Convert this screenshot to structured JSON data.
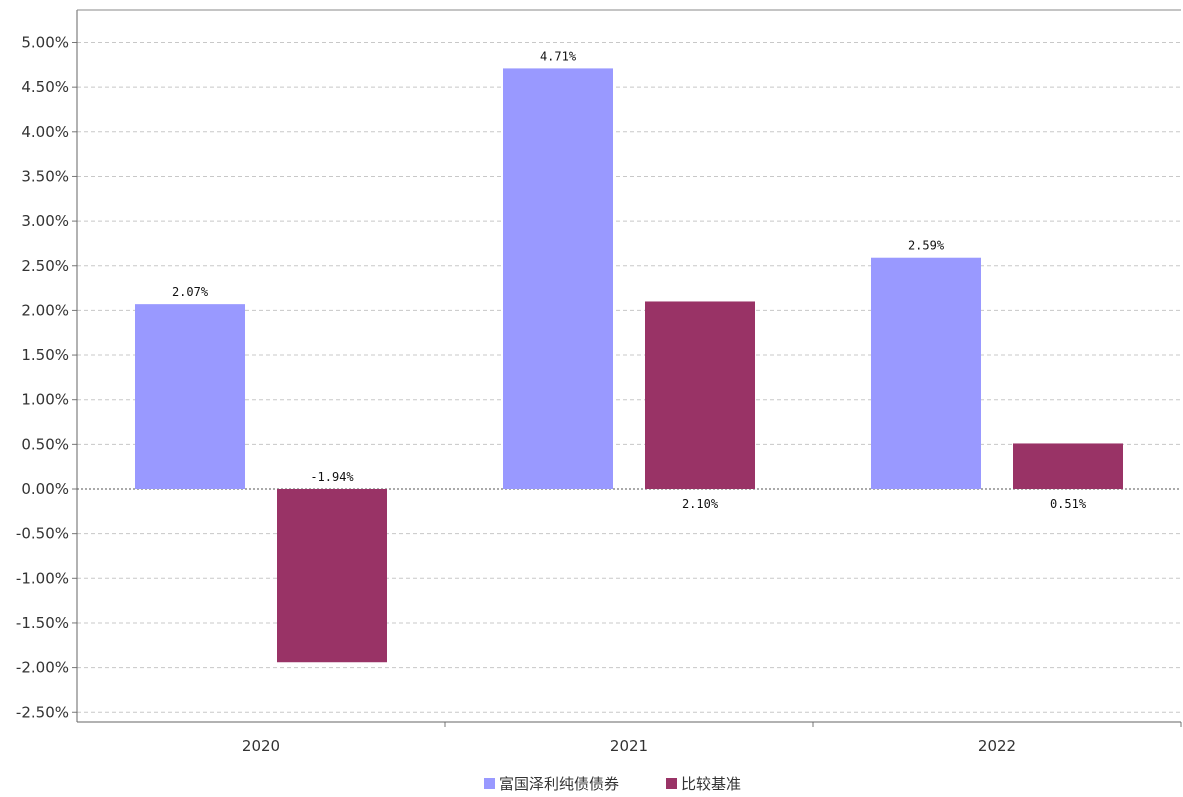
{
  "chart_data": {
    "type": "bar",
    "categories": [
      "2020",
      "2021",
      "2022"
    ],
    "series": [
      {
        "name": "富国泽利纯债债券",
        "color": "#9999ff",
        "values": [
          2.07,
          4.71,
          2.59
        ],
        "labels": [
          "2.07%",
          "4.71%",
          "2.59%"
        ]
      },
      {
        "name": "比较基准",
        "color": "#993366",
        "values": [
          -1.94,
          2.1,
          0.51
        ],
        "labels": [
          "-1.94%",
          "2.10%",
          "0.51%"
        ]
      }
    ],
    "yticks": [
      "5.00%",
      "4.50%",
      "4.00%",
      "3.50%",
      "3.00%",
      "2.50%",
      "2.00%",
      "1.50%",
      "1.00%",
      "0.50%",
      "0.00%",
      "-0.50%",
      "-1.00%",
      "-1.50%",
      "-2.00%",
      "-2.50%"
    ],
    "ylim": [
      -2.5,
      5.0
    ],
    "grid": true,
    "legend_position": "bottom-center",
    "title": "",
    "xlabel": "",
    "ylabel": ""
  }
}
